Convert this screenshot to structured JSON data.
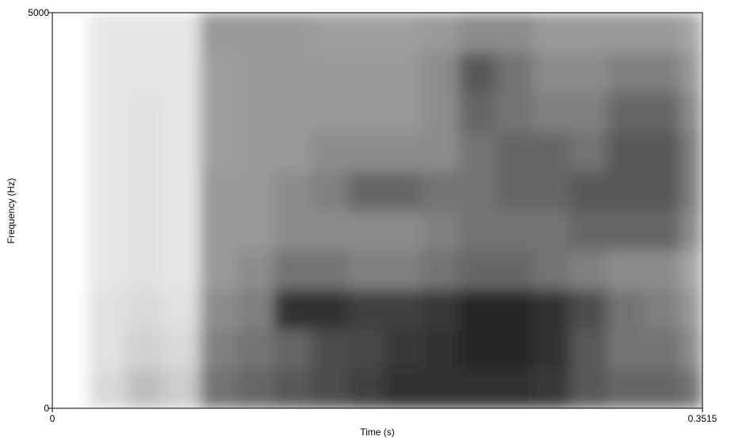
{
  "chart_data": {
    "type": "spectrogram",
    "xlabel": "Time (s)",
    "ylabel": "Frequency (Hz)",
    "xlim": [
      0,
      0.3515
    ],
    "ylim": [
      0,
      5000
    ],
    "xticks": [
      0,
      0.3515
    ],
    "yticks": [
      0,
      5000
    ],
    "xbins": [
      0,
      0.02,
      0.04,
      0.06,
      0.08,
      0.1,
      0.12,
      0.14,
      0.16,
      0.18,
      0.2,
      0.22,
      0.24,
      0.26,
      0.28,
      0.3,
      0.32,
      0.34,
      0.3515
    ],
    "ybins": [
      0,
      500,
      1000,
      1500,
      2000,
      2500,
      3000,
      3500,
      4000,
      4500,
      5000
    ],
    "color_low": "#ffffff",
    "color_high": "#000000",
    "z": [
      [
        0,
        15,
        25,
        20,
        55,
        60,
        65,
        70,
        75,
        80,
        80,
        80,
        80,
        78,
        65,
        60,
        60,
        55
      ],
      [
        0,
        12,
        18,
        15,
        50,
        55,
        60,
        70,
        72,
        78,
        80,
        85,
        85,
        80,
        65,
        55,
        55,
        45
      ],
      [
        0,
        12,
        15,
        12,
        45,
        50,
        80,
        80,
        75,
        75,
        78,
        85,
        85,
        80,
        70,
        55,
        50,
        40
      ],
      [
        0,
        10,
        12,
        10,
        40,
        45,
        55,
        55,
        50,
        50,
        55,
        60,
        60,
        55,
        50,
        45,
        45,
        35
      ],
      [
        0,
        10,
        12,
        10,
        40,
        40,
        45,
        45,
        45,
        45,
        50,
        55,
        55,
        55,
        60,
        60,
        60,
        45
      ],
      [
        0,
        10,
        12,
        10,
        40,
        40,
        45,
        50,
        60,
        60,
        55,
        55,
        60,
        60,
        65,
        65,
        65,
        50
      ],
      [
        0,
        10,
        12,
        10,
        38,
        40,
        40,
        45,
        45,
        45,
        45,
        55,
        60,
        60,
        55,
        65,
        65,
        50
      ],
      [
        0,
        10,
        12,
        10,
        38,
        40,
        40,
        40,
        40,
        40,
        45,
        60,
        55,
        50,
        50,
        60,
        60,
        45
      ],
      [
        0,
        10,
        10,
        10,
        38,
        40,
        40,
        40,
        40,
        40,
        45,
        65,
        55,
        45,
        45,
        50,
        50,
        40
      ],
      [
        0,
        10,
        10,
        10,
        40,
        40,
        40,
        38,
        38,
        38,
        40,
        45,
        45,
        40,
        40,
        40,
        40,
        35
      ]
    ]
  }
}
